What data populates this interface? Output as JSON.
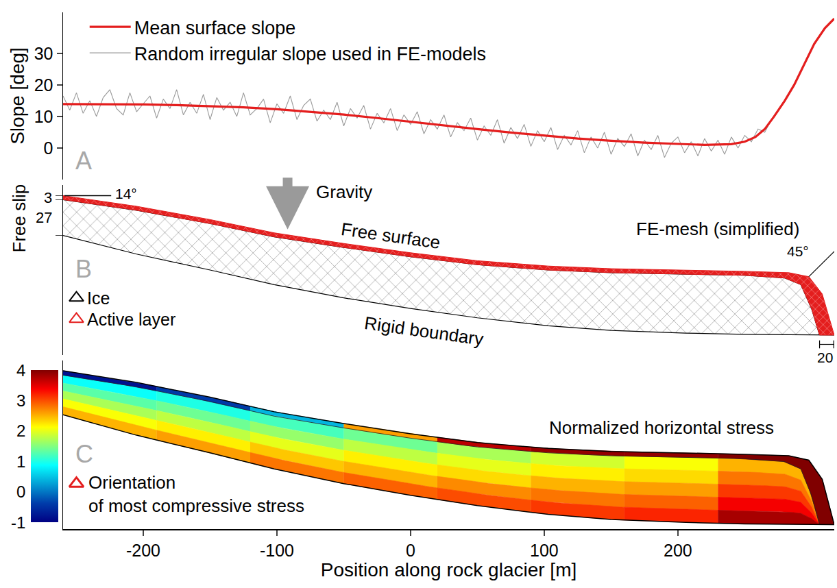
{
  "chart_data": [
    {
      "type": "line",
      "label": "A",
      "ylabel": "Slope [deg]",
      "ylim": [
        -10,
        43
      ],
      "yticks": [
        0,
        10,
        20,
        30
      ],
      "grid": false,
      "legend": "upper left",
      "tick_labels": "y",
      "series": [
        {
          "name": "Mean surface slope",
          "color": "#e41e1e",
          "x": [
            -260,
            -225,
            -200,
            -175,
            -150,
            -125,
            -100,
            -75,
            -50,
            -25,
            0,
            25,
            50,
            75,
            100,
            125,
            150,
            175,
            200,
            220,
            240,
            250,
            258,
            265,
            272,
            280,
            287,
            295,
            302,
            310,
            317
          ],
          "values": [
            13.9,
            13.9,
            13.8,
            13.6,
            13.3,
            12.9,
            12.3,
            11.5,
            10.6,
            9.5,
            8.3,
            7.1,
            6.0,
            4.9,
            3.9,
            3.0,
            2.3,
            1.7,
            1.3,
            1.0,
            1.2,
            2.0,
            3.5,
            6,
            10,
            15,
            20,
            27,
            33,
            38,
            41
          ]
        },
        {
          "name": "Random irregular slope used in FE-models",
          "color": "#9a9a9a",
          "x": [
            -260,
            -255,
            -250,
            -245,
            -240,
            -235,
            -230,
            -225,
            -220,
            -215,
            -210,
            -205,
            -200,
            -195,
            -190,
            -185,
            -180,
            -175,
            -170,
            -165,
            -160,
            -155,
            -150,
            -145,
            -140,
            -135,
            -130,
            -125,
            -120,
            -115,
            -110,
            -105,
            -100,
            -95,
            -90,
            -85,
            -80,
            -75,
            -70,
            -65,
            -60,
            -55,
            -50,
            -45,
            -40,
            -35,
            -30,
            -25,
            -20,
            -15,
            -10,
            -5,
            0,
            5,
            10,
            15,
            20,
            25,
            30,
            35,
            40,
            45,
            50,
            55,
            60,
            65,
            70,
            75,
            80,
            85,
            90,
            95,
            100,
            105,
            110,
            115,
            120,
            125,
            130,
            135,
            140,
            145,
            150,
            155,
            160,
            165,
            170,
            175,
            180,
            185,
            190,
            195,
            200,
            205,
            210,
            215,
            220,
            225,
            230,
            235,
            240,
            245,
            250,
            255,
            260,
            265,
            270
          ],
          "values": [
            16.5,
            12,
            17.5,
            11,
            15,
            10,
            16,
            18.5,
            12.5,
            10.5,
            17.5,
            11.5,
            14,
            16.5,
            9.5,
            15.5,
            12.5,
            18.5,
            10.5,
            14.5,
            11,
            17,
            9,
            16,
            12,
            14.5,
            10,
            17.5,
            10.5,
            12.5,
            15.5,
            8,
            14,
            11,
            16.5,
            9,
            13.5,
            15.5,
            8.5,
            12,
            9,
            14.5,
            7,
            12.5,
            9.5,
            13.5,
            6,
            11,
            8,
            12.5,
            5.5,
            10.5,
            7.5,
            11.5,
            4.5,
            9,
            6,
            10.5,
            3.5,
            8,
            5.5,
            9.5,
            2.5,
            7,
            4,
            9,
            1.5,
            6.5,
            3,
            7.5,
            0.5,
            5.5,
            2,
            6.5,
            -0.5,
            4,
            1,
            5.5,
            -1.5,
            3.5,
            0,
            5,
            -2,
            3,
            0.5,
            4.5,
            -2.5,
            2.5,
            -0.5,
            4,
            -3,
            1.5,
            3.5,
            -1.5,
            2,
            -2.5,
            3,
            -1,
            2.5,
            -2,
            3.5,
            0,
            4,
            2,
            6,
            5,
            9
          ]
        }
      ]
    },
    {
      "type": "diagram",
      "label": "B",
      "ylim": [
        -15,
        113
      ],
      "tick_labels": false,
      "geometry": {
        "surface": {
          "x": [
            -260,
            -205,
            -150,
            -102,
            -50,
            0,
            50,
            103,
            150,
            206,
            250,
            283,
            298,
            308,
            317
          ],
          "y": [
            105,
            97,
            87,
            77,
            69,
            62,
            56,
            52,
            50,
            49,
            48,
            47,
            44,
            31,
            0
          ]
        },
        "ice_top": {
          "x": [
            -260,
            -205,
            -150,
            -102,
            -50,
            0,
            50,
            103,
            150,
            206,
            250,
            280,
            292,
            300,
            306
          ],
          "y": [
            102,
            94,
            84,
            74,
            66,
            59,
            53,
            49,
            47,
            46,
            45,
            43,
            38,
            20,
            0
          ]
        },
        "base": {
          "x": [
            -260,
            -205,
            -150,
            -102,
            -50,
            0,
            50,
            103,
            150,
            206,
            250,
            317
          ],
          "y": [
            75,
            61,
            49,
            38,
            28,
            20,
            13,
            7,
            3.5,
            1.5,
            0.5,
            0
          ]
        }
      },
      "active_layer_thickness": 3,
      "ice_thickness": 27,
      "materials": [
        {
          "name": "Ice",
          "color": "#000000",
          "marker": "triangle"
        },
        {
          "name": "Active layer",
          "color": "#e41e1e",
          "marker": "triangle"
        }
      ],
      "texts": {
        "boundary_left": "Free slip",
        "surface_angle": "14°",
        "gravity": "Gravity",
        "surface": "Free surface",
        "base": "Rigid boundary",
        "mesh": "FE-mesh (simplified)",
        "front_angle": "45°",
        "front_width": "20"
      }
    },
    {
      "type": "field",
      "label": "C",
      "title": "Normalized horizontal stress",
      "xlabel": "Position along rock glacier [m]",
      "xlim": [
        -260,
        317
      ],
      "xticks": [
        -200,
        -100,
        0,
        100,
        200
      ],
      "ylim": [
        -3,
        112
      ],
      "tick_labels": "x",
      "colorbar": {
        "range": [
          -1,
          4
        ],
        "ticks": [
          -1,
          0,
          1,
          2,
          3,
          4
        ]
      },
      "ice_cells": {
        "x_edges": [
          -260,
          -190,
          -120,
          -50,
          20,
          90,
          160,
          230,
          306
        ],
        "depth_edges": [
          0,
          0.2,
          0.4,
          0.6,
          0.8,
          1
        ],
        "values": [
          [
            0.9,
            1.0,
            1.2,
            1.4,
            1.7,
            1.9,
            2.1,
            2.5
          ],
          [
            1.3,
            1.4,
            1.6,
            1.8,
            2.0,
            2.2,
            2.3,
            2.8
          ],
          [
            1.7,
            1.8,
            2.0,
            2.2,
            2.3,
            2.5,
            2.6,
            3.1
          ],
          [
            2.1,
            2.2,
            2.4,
            2.5,
            2.7,
            2.8,
            2.9,
            3.4
          ],
          [
            2.5,
            2.6,
            2.8,
            2.9,
            3.0,
            3.1,
            3.2,
            3.8
          ]
        ]
      },
      "active_layer_cells": {
        "x_edges": [
          -260,
          -190,
          -120,
          -50,
          20,
          90,
          160,
          230,
          317
        ],
        "values": [
          -0.8,
          -0.4,
          0.4,
          2.6,
          3.7,
          3.9,
          3.9,
          4.0
        ]
      },
      "symbol": {
        "name": "Orientation\nof most compressive stress",
        "color": "#e41e1e",
        "marker": "triangle"
      }
    }
  ]
}
